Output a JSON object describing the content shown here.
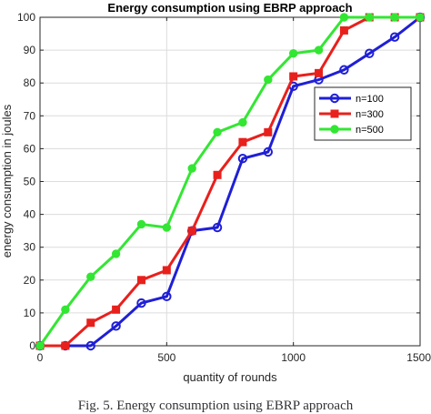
{
  "chart_data": {
    "type": "line",
    "title": "Energy consumption using EBRP approach",
    "xlabel": "quantity of rounds",
    "ylabel": "energy consumption in joules",
    "xlim": [
      0,
      1500
    ],
    "ylim": [
      0,
      100
    ],
    "xticks": [
      0,
      500,
      1000,
      1500
    ],
    "yticks": [
      0,
      10,
      20,
      30,
      40,
      50,
      60,
      70,
      80,
      90,
      100
    ],
    "grid": true,
    "legend_position": "right",
    "x": [
      0,
      100,
      200,
      300,
      400,
      500,
      600,
      700,
      800,
      900,
      1000,
      1100,
      1200,
      1300,
      1400,
      1500
    ],
    "series": [
      {
        "name": "n=100",
        "color": "#1f1fd6",
        "marker": "circle",
        "values": [
          0,
          0,
          0,
          6,
          13,
          15,
          35,
          36,
          57,
          59,
          79,
          81,
          84,
          89,
          94,
          100
        ]
      },
      {
        "name": "n=300",
        "color": "#e8201c",
        "marker": "square",
        "values": [
          0,
          0,
          7,
          11,
          20,
          23,
          35,
          52,
          62,
          65,
          82,
          83,
          96,
          100,
          100,
          100
        ]
      },
      {
        "name": "n=500",
        "color": "#33e633",
        "marker": "circle-filled",
        "values": [
          0,
          11,
          21,
          28,
          37,
          36,
          54,
          65,
          68,
          81,
          89,
          90,
          100,
          100,
          100,
          100
        ]
      }
    ]
  },
  "caption": "Fig. 5. Energy consumption using EBRP approach"
}
